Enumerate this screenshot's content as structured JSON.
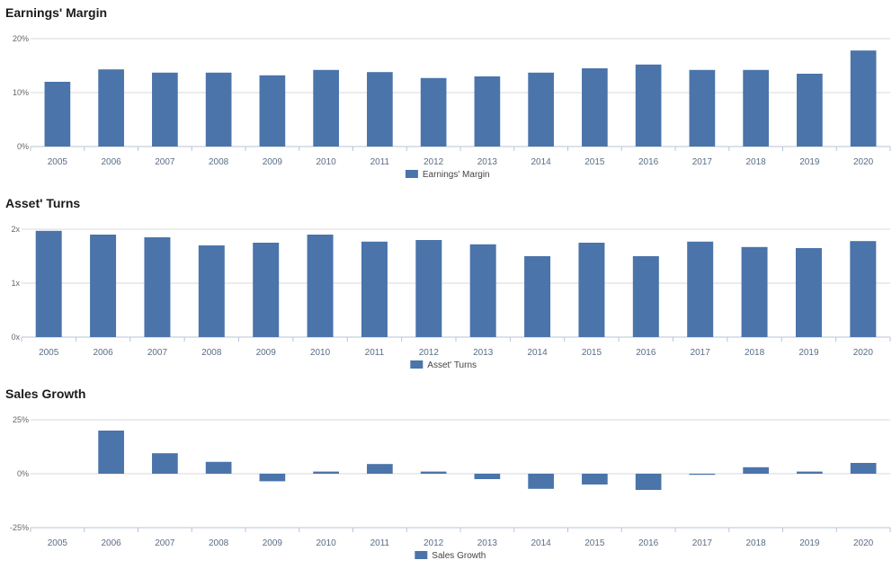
{
  "chart_data": [
    {
      "type": "bar",
      "title": "Earnings' Margin",
      "categories": [
        "2005",
        "2006",
        "2007",
        "2008",
        "2009",
        "2010",
        "2011",
        "2012",
        "2013",
        "2014",
        "2015",
        "2016",
        "2017",
        "2018",
        "2019",
        "2020"
      ],
      "series": [
        {
          "name": "Earnings' Margin",
          "values": [
            12.0,
            14.3,
            13.7,
            13.7,
            13.2,
            14.2,
            13.8,
            12.7,
            13.0,
            13.7,
            14.5,
            15.2,
            14.2,
            14.2,
            13.5,
            17.8
          ]
        }
      ],
      "yticks": [
        "0%",
        "10%",
        "20%"
      ],
      "ylim": [
        0,
        20
      ],
      "color": "#4a74aa",
      "grid": true,
      "legend": "bottom"
    },
    {
      "type": "bar",
      "title": "Asset' Turns",
      "categories": [
        "2005",
        "2006",
        "2007",
        "2008",
        "2009",
        "2010",
        "2011",
        "2012",
        "2013",
        "2014",
        "2015",
        "2016",
        "2017",
        "2018",
        "2019",
        "2020"
      ],
      "series": [
        {
          "name": "Asset' Turns",
          "values": [
            1.97,
            1.9,
            1.85,
            1.7,
            1.75,
            1.9,
            1.77,
            1.8,
            1.72,
            1.5,
            1.75,
            1.5,
            1.77,
            1.67,
            1.65,
            1.78
          ]
        }
      ],
      "yticks": [
        "0x",
        "1x",
        "2x"
      ],
      "ylim": [
        0,
        2
      ],
      "color": "#4a74aa",
      "grid": true,
      "legend": "bottom"
    },
    {
      "type": "bar",
      "title": "Sales Growth",
      "categories": [
        "2005",
        "2006",
        "2007",
        "2008",
        "2009",
        "2010",
        "2011",
        "2012",
        "2013",
        "2014",
        "2015",
        "2016",
        "2017",
        "2018",
        "2019",
        "2020"
      ],
      "series": [
        {
          "name": "Sales Growth",
          "values": [
            0,
            20.0,
            9.5,
            5.5,
            -3.5,
            1.0,
            4.5,
            1.0,
            -2.5,
            -7.0,
            -5.0,
            -7.5,
            -0.5,
            3.0,
            1.0,
            5.0
          ]
        }
      ],
      "yticks": [
        "-25%",
        "0%",
        "25%"
      ],
      "ylim": [
        -25,
        25
      ],
      "color": "#4a74aa",
      "grid": true,
      "legend": "bottom"
    }
  ]
}
